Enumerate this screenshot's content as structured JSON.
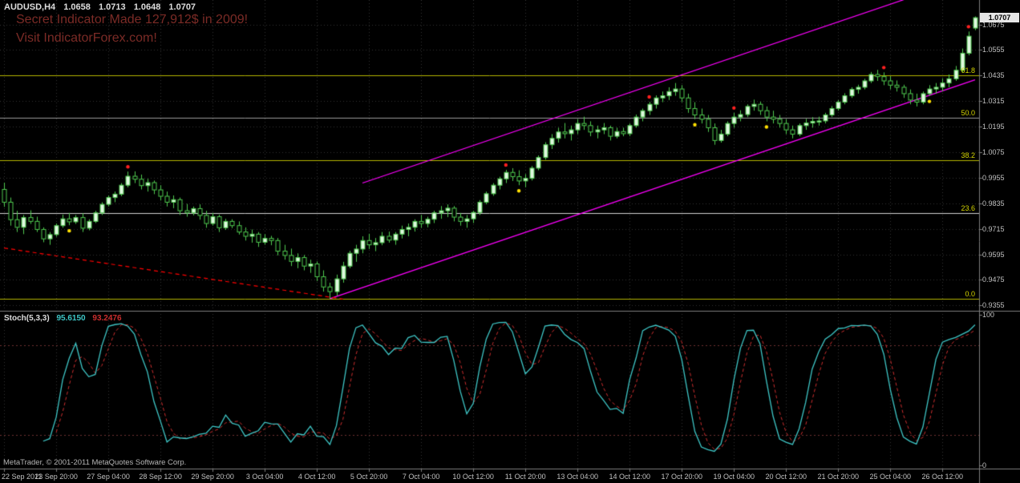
{
  "header": {
    "symbol": "AUDUSD,H4",
    "open": "1.0658",
    "high": "1.0713",
    "low": "1.0648",
    "close": "1.0707"
  },
  "watermark": {
    "line1": "Secret Indicator Made 127,912$ in 2009!",
    "line2": "Visit IndicatorForex.com!"
  },
  "footer": {
    "copyright": "MetaTrader, © 2001-2011 MetaQuotes Software Corp."
  },
  "price_axis": {
    "labels": [
      "1.0675",
      "1.0555",
      "1.0435",
      "1.0315",
      "1.0195",
      "1.0075",
      "0.9955",
      "0.9835",
      "0.9715",
      "0.9595",
      "0.9475",
      "0.9355"
    ],
    "current": "1.0707"
  },
  "time_axis": {
    "labels": [
      "22 Sep 2011",
      "23 Sep 20:00",
      "27 Sep 04:00",
      "28 Sep 12:00",
      "29 Sep 20:00",
      "3 Oct 04:00",
      "4 Oct 12:00",
      "5 Oct 20:00",
      "7 Oct 04:00",
      "10 Oct 12:00",
      "11 Oct 20:00",
      "13 Oct 04:00",
      "14 Oct 12:00",
      "17 Oct 20:00",
      "19 Oct 04:00",
      "20 Oct 12:00",
      "21 Oct 20:00",
      "25 Oct 04:00",
      "26 Oct 12:00"
    ],
    "label_step_bars": 8
  },
  "stoch": {
    "label": "Stoch(5,3,3)",
    "main_value": "95.6150",
    "signal_value": "93.2476",
    "scale": [
      {
        "label": "100",
        "value": 100
      },
      {
        "label": "0",
        "value": 0
      }
    ],
    "levels": [
      20,
      80
    ]
  },
  "colors": {
    "background": "#000000",
    "grid": "#343434",
    "candle": "#4fc94f",
    "candle_bull_fill": "#dff7df",
    "candle_bear_fill": "#000000",
    "fib": "#b5b500",
    "fib_label": "#d6d600",
    "trend_magenta": "#ff00ff",
    "trend_red": "#ff0000",
    "stoch_main": "#3ec6c6",
    "stoch_signal": "#cc2e2e",
    "stoch_level": "#6e3030",
    "axis_text": "#c0c0c0",
    "separator": "#7d7d7d",
    "marker_red": "#ff2020",
    "marker_yellow": "#ffe000"
  },
  "chart_data": {
    "type": "candlestick",
    "symbol": "AUDUSD",
    "timeframe": "H4",
    "title": "AUDUSD,H4  1.0658 1.0713 1.0648 1.0707",
    "price_range": [
      0.933,
      1.079
    ],
    "grid": true,
    "candles": [
      [
        0.99,
        0.9932,
        0.9818,
        0.984
      ],
      [
        0.984,
        0.9862,
        0.973,
        0.9758
      ],
      [
        0.9758,
        0.98,
        0.97,
        0.9722
      ],
      [
        0.9722,
        0.978,
        0.969,
        0.9768
      ],
      [
        0.9768,
        0.9802,
        0.9738,
        0.975
      ],
      [
        0.975,
        0.9772,
        0.97,
        0.9712
      ],
      [
        0.9712,
        0.9722,
        0.9652,
        0.9668
      ],
      [
        0.9668,
        0.97,
        0.964,
        0.9688
      ],
      [
        0.9688,
        0.974,
        0.9678,
        0.973
      ],
      [
        0.973,
        0.9782,
        0.972,
        0.9762
      ],
      [
        0.9762,
        0.979,
        0.9732,
        0.9748
      ],
      [
        0.9748,
        0.978,
        0.9738,
        0.9768
      ],
      [
        0.9768,
        0.9788,
        0.97,
        0.9718
      ],
      [
        0.9718,
        0.976,
        0.9708,
        0.975
      ],
      [
        0.975,
        0.98,
        0.9742,
        0.979
      ],
      [
        0.979,
        0.984,
        0.978,
        0.983
      ],
      [
        0.983,
        0.9872,
        0.982,
        0.9862
      ],
      [
        0.9862,
        0.989,
        0.984,
        0.9878
      ],
      [
        0.9878,
        0.993,
        0.9868,
        0.992
      ],
      [
        0.992,
        0.9984,
        0.991,
        0.9962
      ],
      [
        0.9962,
        0.9985,
        0.993,
        0.9948
      ],
      [
        0.9948,
        0.997,
        0.99,
        0.9918
      ],
      [
        0.9918,
        0.995,
        0.989,
        0.9932
      ],
      [
        0.9932,
        0.9942,
        0.9878,
        0.9898
      ],
      [
        0.9898,
        0.992,
        0.9848,
        0.9868
      ],
      [
        0.9868,
        0.989,
        0.982,
        0.984
      ],
      [
        0.984,
        0.9872,
        0.9812,
        0.9852
      ],
      [
        0.9852,
        0.9862,
        0.978,
        0.98
      ],
      [
        0.98,
        0.9832,
        0.9772,
        0.979
      ],
      [
        0.979,
        0.982,
        0.9778,
        0.981
      ],
      [
        0.981,
        0.983,
        0.9758,
        0.9778
      ],
      [
        0.9778,
        0.98,
        0.972,
        0.974
      ],
      [
        0.974,
        0.979,
        0.973,
        0.9772
      ],
      [
        0.9772,
        0.9782,
        0.97,
        0.972
      ],
      [
        0.972,
        0.9762,
        0.971,
        0.975
      ],
      [
        0.975,
        0.976,
        0.9718,
        0.973
      ],
      [
        0.973,
        0.975,
        0.9688,
        0.97
      ],
      [
        0.97,
        0.9722,
        0.966,
        0.968
      ],
      [
        0.968,
        0.9712,
        0.965,
        0.969
      ],
      [
        0.969,
        0.97,
        0.963,
        0.9652
      ],
      [
        0.9652,
        0.969,
        0.964,
        0.967
      ],
      [
        0.967,
        0.9682,
        0.9638,
        0.966
      ],
      [
        0.966,
        0.9672,
        0.959,
        0.961
      ],
      [
        0.961,
        0.964,
        0.957,
        0.959
      ],
      [
        0.959,
        0.9622,
        0.954,
        0.9562
      ],
      [
        0.9562,
        0.96,
        0.953,
        0.958
      ],
      [
        0.958,
        0.9592,
        0.952,
        0.954
      ],
      [
        0.954,
        0.957,
        0.9508,
        0.955
      ],
      [
        0.955,
        0.9562,
        0.947,
        0.949
      ],
      [
        0.949,
        0.952,
        0.942,
        0.9442
      ],
      [
        0.9442,
        0.9462,
        0.9387,
        0.942
      ],
      [
        0.942,
        0.95,
        0.94,
        0.948
      ],
      [
        0.948,
        0.956,
        0.9462,
        0.954
      ],
      [
        0.954,
        0.9612,
        0.953,
        0.96
      ],
      [
        0.96,
        0.964,
        0.956,
        0.962
      ],
      [
        0.962,
        0.968,
        0.96,
        0.966
      ],
      [
        0.966,
        0.9692,
        0.962,
        0.964
      ],
      [
        0.964,
        0.9672,
        0.961,
        0.965
      ],
      [
        0.965,
        0.97,
        0.9638,
        0.968
      ],
      [
        0.968,
        0.9702,
        0.965,
        0.9662
      ],
      [
        0.9662,
        0.97,
        0.964,
        0.969
      ],
      [
        0.969,
        0.973,
        0.967,
        0.9712
      ],
      [
        0.9712,
        0.974,
        0.968,
        0.9722
      ],
      [
        0.9722,
        0.976,
        0.9702,
        0.975
      ],
      [
        0.975,
        0.978,
        0.972,
        0.974
      ],
      [
        0.974,
        0.9772,
        0.9722,
        0.976
      ],
      [
        0.976,
        0.98,
        0.9742,
        0.979
      ],
      [
        0.979,
        0.9822,
        0.9762,
        0.98
      ],
      [
        0.98,
        0.983,
        0.977,
        0.9812
      ],
      [
        0.9812,
        0.9822,
        0.975,
        0.977
      ],
      [
        0.977,
        0.979,
        0.973,
        0.975
      ],
      [
        0.975,
        0.978,
        0.972,
        0.9762
      ],
      [
        0.9762,
        0.98,
        0.9742,
        0.9792
      ],
      [
        0.9792,
        0.985,
        0.978,
        0.984
      ],
      [
        0.984,
        0.989,
        0.983,
        0.988
      ],
      [
        0.988,
        0.993,
        0.987,
        0.992
      ],
      [
        0.992,
        0.996,
        0.99,
        0.995
      ],
      [
        0.995,
        0.9992,
        0.993,
        0.998
      ],
      [
        0.998,
        1.0,
        0.994,
        0.996
      ],
      [
        0.996,
        0.999,
        0.992,
        0.994
      ],
      [
        0.994,
        0.9972,
        0.991,
        0.9952
      ],
      [
        0.9952,
        1.001,
        0.9942,
        1.0
      ],
      [
        1.0,
        1.006,
        0.999,
        1.005
      ],
      [
        1.005,
        1.0122,
        1.004,
        1.011
      ],
      [
        1.011,
        1.016,
        1.009,
        1.014
      ],
      [
        1.014,
        1.019,
        1.012,
        1.017
      ],
      [
        1.017,
        1.0212,
        1.014,
        1.0162
      ],
      [
        1.0162,
        1.02,
        1.013,
        1.018
      ],
      [
        1.018,
        1.023,
        1.016,
        1.021
      ],
      [
        1.021,
        1.0242,
        1.018,
        1.02
      ],
      [
        1.02,
        1.022,
        1.015,
        1.017
      ],
      [
        1.017,
        1.02,
        1.014,
        1.018
      ],
      [
        1.018,
        1.0212,
        1.016,
        1.019
      ],
      [
        1.019,
        1.02,
        1.013,
        1.015
      ],
      [
        1.015,
        1.019,
        1.014,
        1.0172
      ],
      [
        1.0172,
        1.019,
        1.015,
        1.0162
      ],
      [
        1.0162,
        1.021,
        1.015,
        1.02
      ],
      [
        1.02,
        1.0252,
        1.019,
        1.024
      ],
      [
        1.024,
        1.028,
        1.022,
        1.027
      ],
      [
        1.027,
        1.0312,
        1.025,
        1.03
      ],
      [
        1.03,
        1.0342,
        1.028,
        1.033
      ],
      [
        1.033,
        1.036,
        1.031,
        1.034
      ],
      [
        1.034,
        1.038,
        1.032,
        1.036
      ],
      [
        1.036,
        1.04,
        1.034,
        1.0372
      ],
      [
        1.0372,
        1.039,
        1.031,
        1.033
      ],
      [
        1.033,
        1.035,
        1.026,
        1.028
      ],
      [
        1.028,
        1.031,
        1.023,
        1.025
      ],
      [
        1.025,
        1.028,
        1.021,
        1.023
      ],
      [
        1.023,
        1.025,
        1.017,
        1.019
      ],
      [
        1.019,
        1.021,
        1.011,
        1.013
      ],
      [
        1.013,
        1.018,
        1.012,
        1.016
      ],
      [
        1.016,
        1.022,
        1.015,
        1.021
      ],
      [
        1.021,
        1.026,
        1.019,
        1.024
      ],
      [
        1.024,
        1.0272,
        1.022,
        1.0252
      ],
      [
        1.0252,
        1.03,
        1.024,
        1.029
      ],
      [
        1.029,
        1.0322,
        1.027,
        1.03
      ],
      [
        1.03,
        1.0312,
        1.025,
        1.027
      ],
      [
        1.027,
        1.029,
        1.022,
        1.024
      ],
      [
        1.024,
        1.027,
        1.021,
        1.023
      ],
      [
        1.023,
        1.025,
        1.019,
        1.021
      ],
      [
        1.021,
        1.023,
        1.016,
        1.018
      ],
      [
        1.018,
        1.02,
        1.014,
        1.016
      ],
      [
        1.016,
        1.021,
        1.015,
        1.02
      ],
      [
        1.02,
        1.0232,
        1.018,
        1.0212
      ],
      [
        1.0212,
        1.024,
        1.019,
        1.022
      ],
      [
        1.022,
        1.0242,
        1.02,
        1.0222
      ],
      [
        1.0222,
        1.026,
        1.021,
        1.025
      ],
      [
        1.025,
        1.0292,
        1.024,
        1.028
      ],
      [
        1.028,
        1.032,
        1.027,
        1.031
      ],
      [
        1.031,
        1.0352,
        1.03,
        1.034
      ],
      [
        1.034,
        1.038,
        1.033,
        1.037
      ],
      [
        1.037,
        1.0392,
        1.035,
        1.038
      ],
      [
        1.038,
        1.042,
        1.037,
        1.041
      ],
      [
        1.041,
        1.0452,
        1.04,
        1.044
      ],
      [
        1.044,
        1.0462,
        1.041,
        1.043
      ],
      [
        1.043,
        1.045,
        1.039,
        1.041
      ],
      [
        1.041,
        1.0432,
        1.037,
        1.039
      ],
      [
        1.039,
        1.0412,
        1.036,
        1.038
      ],
      [
        1.038,
        1.0392,
        1.033,
        1.035
      ],
      [
        1.035,
        1.037,
        1.03,
        1.032
      ],
      [
        1.032,
        1.035,
        1.029,
        1.031
      ],
      [
        1.031,
        1.036,
        1.03,
        1.035
      ],
      [
        1.035,
        1.039,
        1.034,
        1.0372
      ],
      [
        1.0372,
        1.04,
        1.035,
        1.038
      ],
      [
        1.038,
        1.0422,
        1.036,
        1.04
      ],
      [
        1.04,
        1.044,
        1.038,
        1.042
      ],
      [
        1.042,
        1.048,
        1.041,
        1.046
      ],
      [
        1.046,
        1.0562,
        1.045,
        1.054
      ],
      [
        1.054,
        1.0642,
        1.053,
        1.062
      ],
      [
        1.0658,
        1.0713,
        1.0648,
        1.0707
      ]
    ],
    "fib_levels": [
      {
        "label": "61.8",
        "price": 1.0438,
        "color": "#b5b500"
      },
      {
        "label": "50.0",
        "price": 1.0237,
        "color": "#9a9a9a"
      },
      {
        "label": "38.2",
        "price": 1.0037,
        "color": "#b5b500"
      },
      {
        "label": "23.6",
        "price": 0.9789,
        "color": "#d0d0d0"
      },
      {
        "label": "0.0",
        "price": 0.9387,
        "color": "#b5b500"
      }
    ],
    "trend_lines": [
      {
        "name": "channel-lower",
        "color": "#ff00ff",
        "style": "solid",
        "from": [
          50,
          0.9387
        ],
        "to": [
          149,
          1.0415
        ]
      },
      {
        "name": "channel-upper",
        "color": "#ff00ff",
        "style": "solid",
        "from": [
          55,
          0.993
        ],
        "to": [
          149,
          1.0905
        ]
      },
      {
        "name": "old-downtrend",
        "color": "#ff0000",
        "style": "dashed",
        "from": [
          0,
          0.9625
        ],
        "to": [
          52,
          0.9385
        ]
      }
    ],
    "markers": {
      "red_above": [
        19,
        77,
        99,
        112,
        135,
        148
      ],
      "yellow_below": [
        10,
        79,
        106,
        117,
        142
      ]
    },
    "indicator": {
      "name": "Stochastic",
      "params": [
        5,
        3,
        3
      ],
      "range": [
        0,
        100
      ],
      "main_value": 95.615,
      "signal_value": 93.2476
    }
  }
}
